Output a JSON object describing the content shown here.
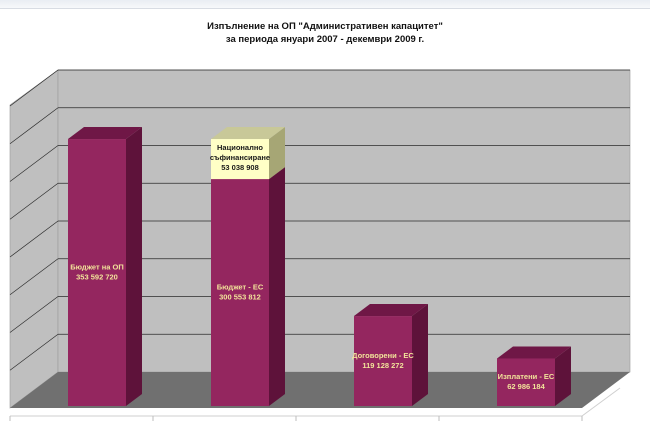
{
  "chart_data": {
    "type": "bar",
    "title": "Изпълнение на ОП \"Административен капацитет\"",
    "subtitle": "за периода януари 2007 - декември 2009 г.",
    "categories": [
      "Бюджет на ОП",
      "Бюджет - ЕС",
      "Договорени - ЕС",
      "Изплатени - ЕС"
    ],
    "series": [
      {
        "values": [
          353592720,
          300553812,
          119128272,
          62986184
        ]
      },
      {
        "values": [
          null,
          53038908,
          null,
          null
        ]
      }
    ],
    "data_labels": [
      {
        "name": "Бюджет на ОП",
        "value": "353 592 720"
      },
      {
        "name": "Бюджет - ЕС",
        "value": "300 553 812"
      },
      {
        "name": "Договорени - ЕС",
        "value": "119 128 272"
      },
      {
        "name": "Изплатени - ЕС",
        "value": "62 986 184"
      }
    ],
    "stack_label": {
      "name": "Национално съфинансиране",
      "value": "53 038 908"
    },
    "ylim": [
      0,
      400000000
    ],
    "grid": true,
    "style": "3d-bar",
    "colors": {
      "bar_front": "#94265f",
      "bar_side": "#5e123a",
      "bar_top": "#6f1746",
      "stack_front": "#ffffc6",
      "stack_side": "#a6a675",
      "stack_top": "#c8c898",
      "wall": "#bfbfbf",
      "floor": "#707070",
      "label_text": "#f2e39a"
    }
  }
}
